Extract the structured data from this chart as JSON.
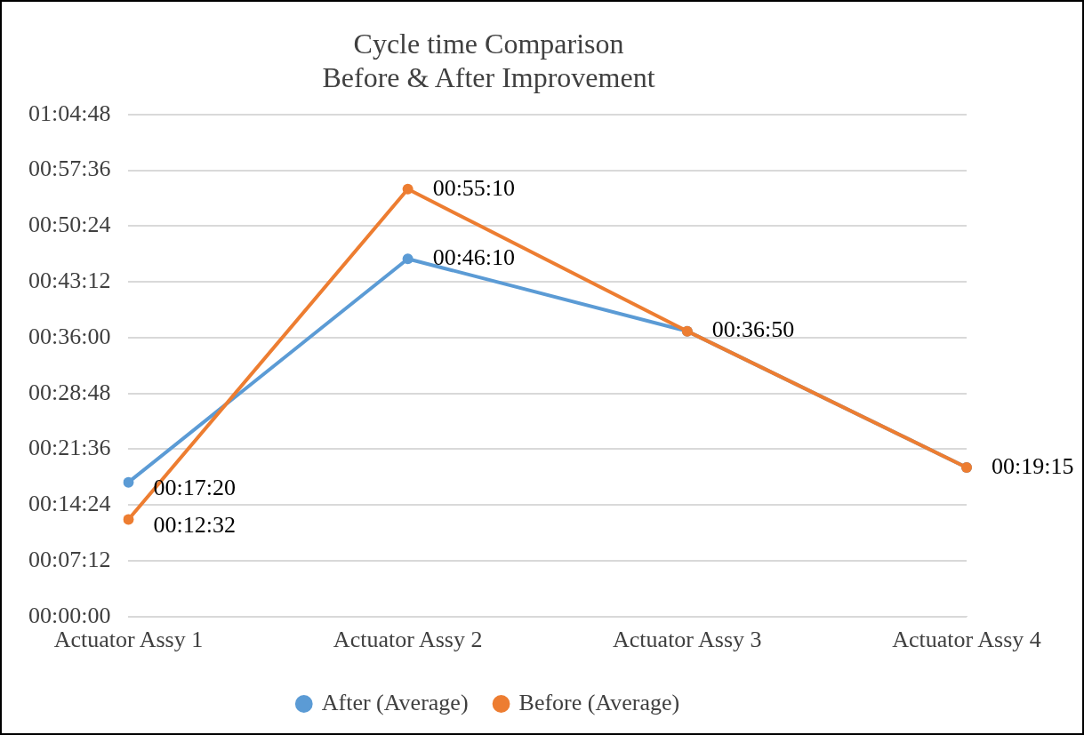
{
  "chart_data": {
    "type": "line",
    "title": "Cycle time Comparison\nBefore & After Improvement",
    "categories": [
      "Actuator Assy 1",
      "Actuator Assy 2",
      "Actuator Assy 3",
      "Actuator Assy 4"
    ],
    "series": [
      {
        "name": "After (Average)",
        "color": "#5b9bd5",
        "values": [
          0.28889,
          0.76944,
          0.61389,
          0.32083
        ],
        "value_labels": [
          "00:17:20",
          "00:46:10",
          "00:36:50",
          "00:19:15"
        ]
      },
      {
        "name": "Before (Average)",
        "color": "#ed7d31",
        "values": [
          0.20889,
          0.91944,
          0.61389,
          0.32083
        ],
        "value_labels": [
          "00:12:32",
          "00:55:10",
          null,
          null
        ]
      }
    ],
    "ylim": [
      0,
      1.08
    ],
    "yticks": [
      {
        "value": 0,
        "label": "00:00:00"
      },
      {
        "value": 0.12,
        "label": "00:07:12"
      },
      {
        "value": 0.24,
        "label": "00:14:24"
      },
      {
        "value": 0.36,
        "label": "00:21:36"
      },
      {
        "value": 0.48,
        "label": "00:28:48"
      },
      {
        "value": 0.6,
        "label": "00:36:00"
      },
      {
        "value": 0.72,
        "label": "00:43:12"
      },
      {
        "value": 0.84,
        "label": "00:50:24"
      },
      {
        "value": 0.96,
        "label": "00:57:36"
      },
      {
        "value": 1.08,
        "label": "01:04:48"
      }
    ],
    "grid": "y",
    "legend": "bottom",
    "marker": "circle",
    "line_style": "solid"
  }
}
